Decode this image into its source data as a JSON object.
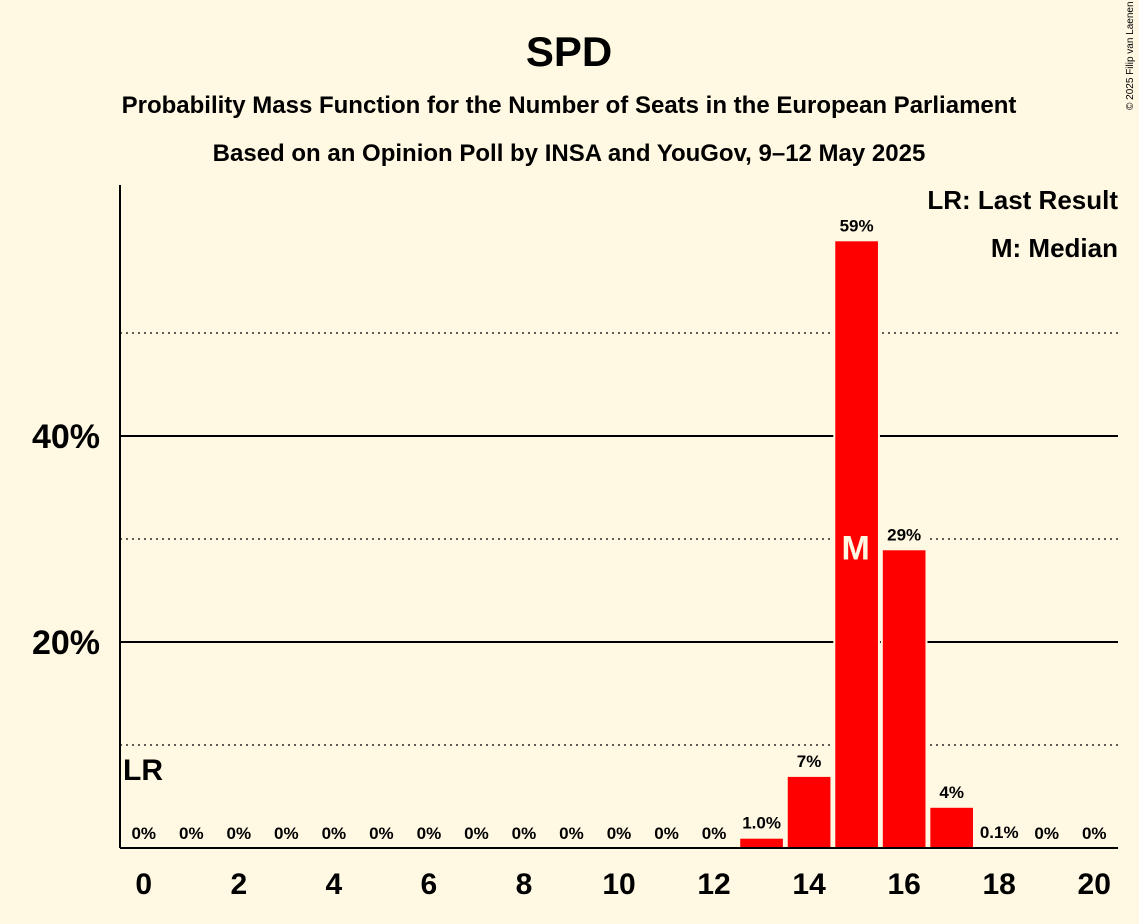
{
  "title": "SPD",
  "subtitle1": "Probability Mass Function for the Number of Seats in the European Parliament",
  "subtitle2": "Based on an Opinion Poll by INSA and YouGov, 9–12 May 2025",
  "copyright": "© 2025 Filip van Laenen",
  "legend": {
    "lr": "LR: Last Result",
    "m": "M: Median"
  },
  "markers": {
    "last_result_label": "LR",
    "last_result_seats": 0,
    "median_label": "M",
    "median_seats": 15
  },
  "colors": {
    "bar": "#ff0000",
    "background": "#fff8e3",
    "median_text": "#fff8e3"
  },
  "chart_data": {
    "type": "bar",
    "categories": [
      0,
      1,
      2,
      3,
      4,
      5,
      6,
      7,
      8,
      9,
      10,
      11,
      12,
      13,
      14,
      15,
      16,
      17,
      18,
      19,
      20
    ],
    "values": [
      0,
      0,
      0,
      0,
      0,
      0,
      0,
      0,
      0,
      0,
      0,
      0,
      0,
      1.0,
      7,
      59,
      29,
      4,
      0.1,
      0,
      0
    ],
    "labels": [
      "0%",
      "0%",
      "0%",
      "0%",
      "0%",
      "0%",
      "0%",
      "0%",
      "0%",
      "0%",
      "0%",
      "0%",
      "0%",
      "1.0%",
      "7%",
      "59%",
      "29%",
      "4%",
      "0.1%",
      "0%",
      "0%"
    ],
    "xticks": [
      0,
      2,
      4,
      6,
      8,
      10,
      12,
      14,
      16,
      18,
      20
    ],
    "yticks": [
      20,
      40
    ],
    "ytick_labels": [
      "20%",
      "40%"
    ],
    "minor_gridlines": [
      10,
      30,
      50
    ],
    "ylim": [
      0,
      64
    ],
    "xlim": [
      -0.5,
      20.5
    ],
    "grid": true,
    "legend_position": "top-right"
  }
}
